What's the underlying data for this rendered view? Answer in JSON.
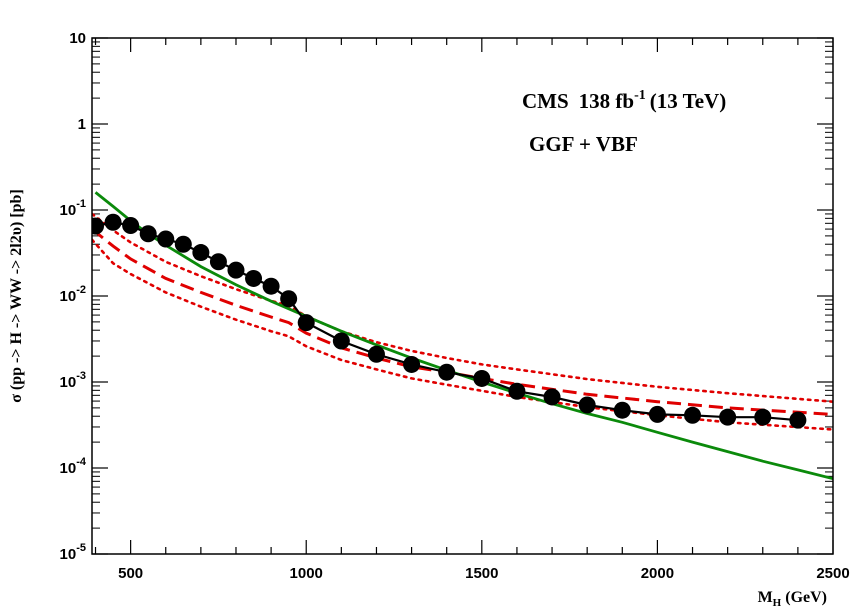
{
  "chart_data": {
    "type": "line",
    "title": "",
    "annotations": {
      "experiment": "CMS",
      "lumi_value": "138 fb",
      "lumi_exp": "-1",
      "energy": "(13 TeV)",
      "process": "GGF + VBF"
    },
    "xlabel": {
      "main": "M",
      "sub": "H",
      "rest": " (GeV)"
    },
    "ylabel": "σ (pp -> H -> WW -> 2l2υ) [pb]",
    "xlim": [
      390,
      2500
    ],
    "ylim": [
      1e-05,
      10
    ],
    "yscale": "log",
    "x_ticks": [
      500,
      1000,
      1500,
      2000,
      2500
    ],
    "x_tick_labels": [
      "500",
      "1000",
      "1500",
      "2000",
      "2500"
    ],
    "y_ticks": [
      {
        "value": 10,
        "base": "10",
        "exp": ""
      },
      {
        "value": 1,
        "base": "1",
        "exp": ""
      },
      {
        "value": 0.1,
        "base": "10",
        "exp": "-1"
      },
      {
        "value": 0.01,
        "base": "10",
        "exp": "-2"
      },
      {
        "value": 0.001,
        "base": "10",
        "exp": "-3"
      },
      {
        "value": 0.0001,
        "base": "10",
        "exp": "-4"
      },
      {
        "value": 1e-05,
        "base": "10",
        "exp": "-5"
      }
    ],
    "colors": {
      "observed": "#000000",
      "expected": "#e00000",
      "theory": "#0b8a0b"
    },
    "series": [
      {
        "role": "observed",
        "style": "solid-markers",
        "x": [
          400,
          450,
          500,
          550,
          600,
          650,
          700,
          750,
          800,
          850,
          900,
          950,
          1000,
          1100,
          1200,
          1300,
          1400,
          1500,
          1600,
          1700,
          1800,
          1900,
          2000,
          2100,
          2200,
          2300,
          2400
        ],
        "y": [
          0.065,
          0.072,
          0.066,
          0.053,
          0.046,
          0.04,
          0.032,
          0.025,
          0.02,
          0.016,
          0.013,
          0.0093,
          0.0049,
          0.003,
          0.0021,
          0.0016,
          0.0013,
          0.0011,
          0.00078,
          0.00067,
          0.00054,
          0.00047,
          0.00042,
          0.00041,
          0.00039,
          0.00039,
          0.00036
        ]
      },
      {
        "role": "expected",
        "style": "dashed",
        "x": [
          390,
          450,
          500,
          600,
          700,
          800,
          900,
          950,
          1000,
          1100,
          1200,
          1300,
          1400,
          1500,
          1600,
          1800,
          2000,
          2200,
          2500
        ],
        "y": [
          0.06,
          0.038,
          0.027,
          0.016,
          0.011,
          0.0078,
          0.0057,
          0.0049,
          0.0037,
          0.0025,
          0.0019,
          0.0015,
          0.0013,
          0.0011,
          0.00094,
          0.00072,
          0.00059,
          0.0005,
          0.00042
        ]
      },
      {
        "role": "expected-band-upper",
        "style": "dotted",
        "x": [
          390,
          450,
          500,
          600,
          700,
          800,
          900,
          950,
          1000,
          1100,
          1200,
          1300,
          1400,
          1500,
          1600,
          1800,
          2000,
          2200,
          2500
        ],
        "y": [
          0.09,
          0.058,
          0.042,
          0.025,
          0.017,
          0.012,
          0.0088,
          0.0077,
          0.0058,
          0.0039,
          0.0029,
          0.0023,
          0.0019,
          0.0016,
          0.0014,
          0.00108,
          0.00088,
          0.00074,
          0.00059
        ]
      },
      {
        "role": "expected-band-lower",
        "style": "dotted",
        "x": [
          390,
          450,
          500,
          600,
          700,
          800,
          900,
          950,
          1000,
          1100,
          1200,
          1300,
          1400,
          1500,
          1600,
          1800,
          2000,
          2200,
          2500
        ],
        "y": [
          0.045,
          0.024,
          0.018,
          0.011,
          0.0075,
          0.0053,
          0.0039,
          0.0034,
          0.0026,
          0.0018,
          0.0014,
          0.0011,
          0.00093,
          0.00079,
          0.00067,
          0.00051,
          0.00041,
          0.00034,
          0.00028
        ]
      },
      {
        "role": "theory",
        "style": "solid",
        "x": [
          400,
          450,
          500,
          550,
          600,
          700,
          800,
          900,
          1000,
          1100,
          1200,
          1300,
          1400,
          1500,
          1600,
          1700,
          1800,
          1900,
          2000,
          2100,
          2200,
          2300,
          2400,
          2500
        ],
        "y": [
          0.16,
          0.11,
          0.075,
          0.053,
          0.039,
          0.022,
          0.0135,
          0.0087,
          0.0058,
          0.0039,
          0.0027,
          0.0019,
          0.00137,
          0.001,
          0.00074,
          0.00056,
          0.00043,
          0.00034,
          0.00026,
          0.0002,
          0.000155,
          0.00012,
          9.5e-05,
          7.5e-05
        ]
      }
    ]
  }
}
